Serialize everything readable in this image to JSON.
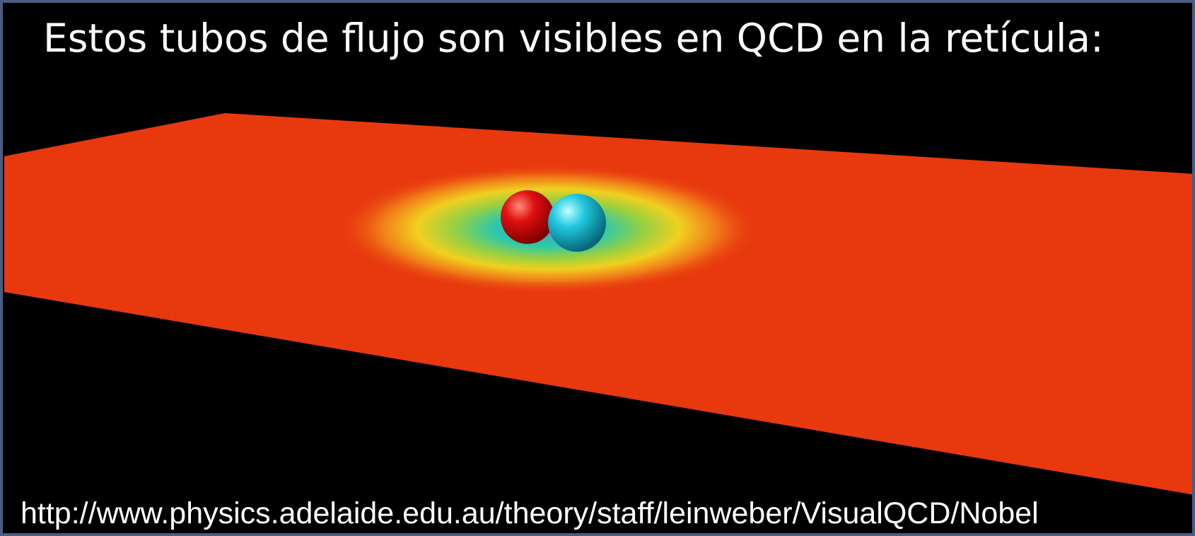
{
  "title": "Estos tubos de flujo son visibles en QCD en la retícula:",
  "url": "http://www.physics.adelaide.edu.au/theory/staff/leinweber/VisualQCD/Nobel"
}
